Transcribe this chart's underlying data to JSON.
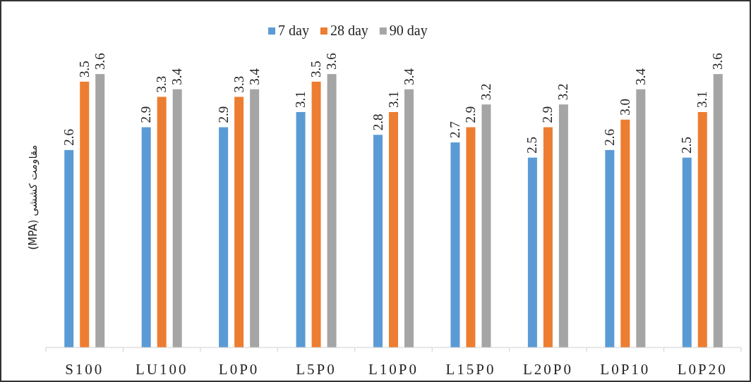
{
  "chart_data": {
    "type": "bar",
    "ylabel": "مقاومت  کششی (MPA)",
    "categories": [
      "S100",
      "LU100",
      "L0P0",
      "L5P0",
      "L10P0",
      "L15P0",
      "L20P0",
      "L0P10",
      "L0P20"
    ],
    "series": [
      {
        "name": "7 day",
        "color": "#5b9bd5",
        "values": [
          2.6,
          2.9,
          2.9,
          3.1,
          2.8,
          2.7,
          2.5,
          2.6,
          2.5
        ],
        "value_labels": [
          "2.6",
          "2.9",
          "2.9",
          "3.1",
          "2.8",
          "2.7",
          "2.5",
          "2.6",
          "2.5"
        ]
      },
      {
        "name": "28 day",
        "color": "#ed7d31",
        "values": [
          3.5,
          3.3,
          3.3,
          3.5,
          3.1,
          2.9,
          2.9,
          3.0,
          3.1
        ],
        "value_labels": [
          "3.5",
          "3.3",
          "3.3",
          "3.5",
          "3.1",
          "2.9",
          "2.9",
          "3.0",
          "3.1"
        ]
      },
      {
        "name": "90 day",
        "color": "#a5a5a5",
        "values": [
          3.6,
          3.4,
          3.4,
          3.6,
          3.4,
          3.2,
          3.2,
          3.4,
          3.6
        ],
        "value_labels": [
          "3.6",
          "3.4",
          "3.4",
          "3.6",
          "3.4",
          "3.2",
          "3.2",
          "3.4",
          "3.6"
        ]
      }
    ],
    "legend": "top"
  }
}
